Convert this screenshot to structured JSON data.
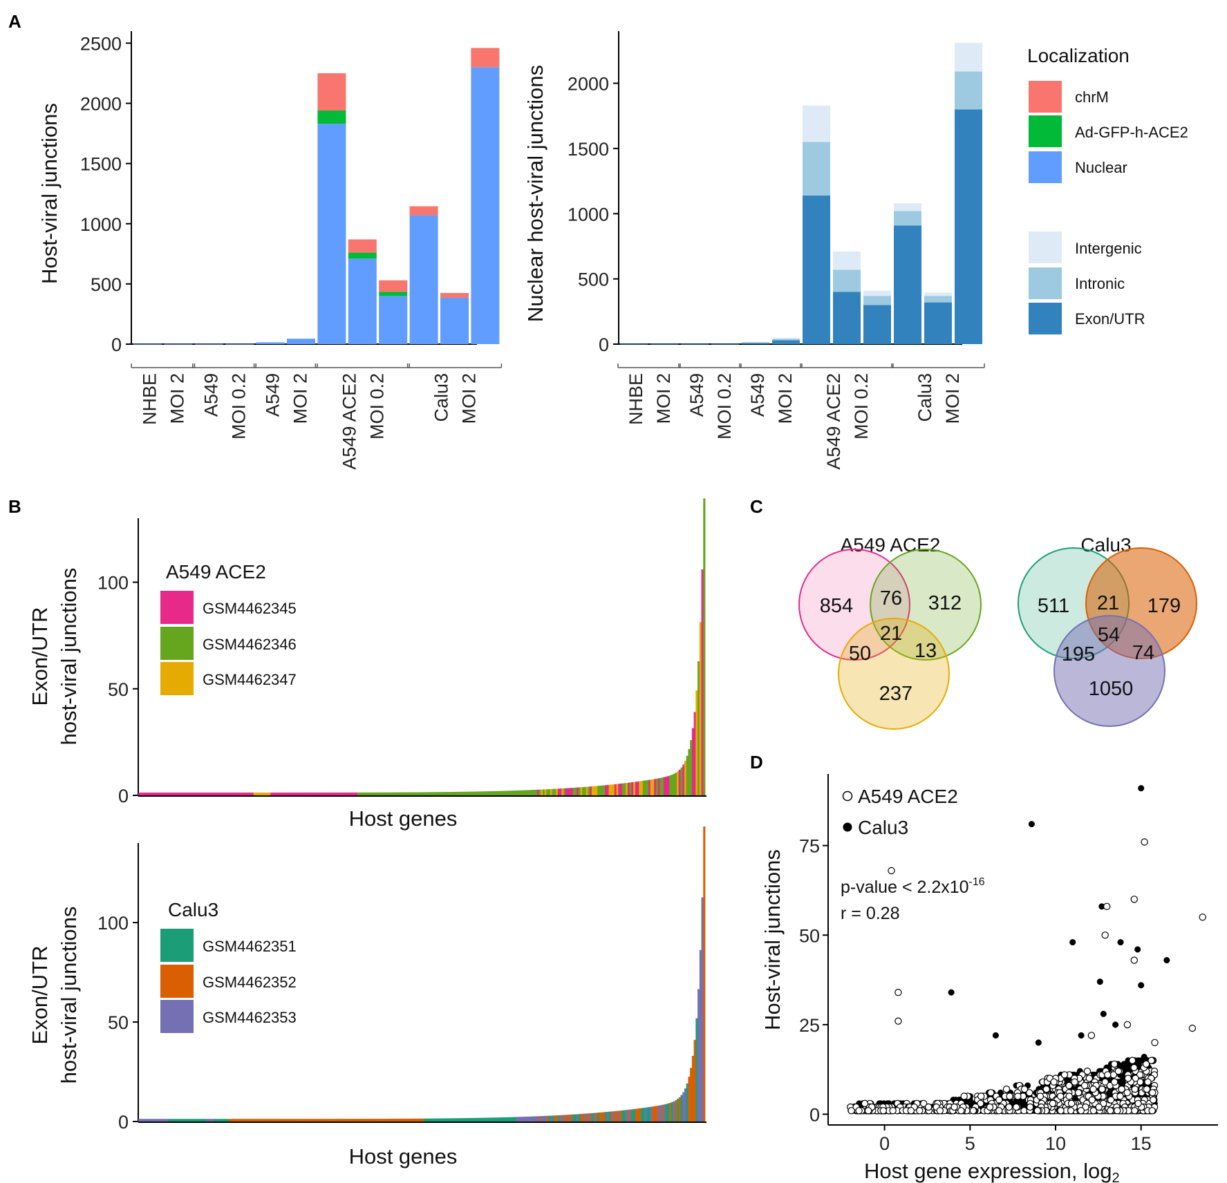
{
  "panels": {
    "a": "A",
    "b": "B",
    "c": "C",
    "d": "D"
  },
  "colors": {
    "chrM": "#F8766D",
    "Ad-GFP-h-ACE2": "#00BA38",
    "Nuclear": "#619CFF",
    "Intergenic": "#DEEBF7",
    "Intronic": "#9ECAE1",
    "Exon/UTR": "#3182BD",
    "GSM4462345": "#E7298A",
    "GSM4462346": "#66A61E",
    "GSM4462347": "#E6AB02",
    "GSM4462351": "#1B9E77",
    "GSM4462352": "#D95F02",
    "GSM4462353": "#7570B3"
  },
  "chart_data": [
    {
      "id": "A-left",
      "type": "bar",
      "stacked": true,
      "ylabel": "Host-viral junctions",
      "ylim": [
        0,
        2600
      ],
      "yticks": [
        0,
        500,
        1000,
        1500,
        2000,
        2500
      ],
      "bar_groups": [
        {
          "lines": [
            "NHBE",
            "MOI 2"
          ],
          "bars": 2
        },
        {
          "lines": [
            "A549",
            "MOI 0.2"
          ],
          "bars": 2
        },
        {
          "lines": [
            "A549",
            "MOI 2"
          ],
          "bars": 2
        },
        {
          "lines": [
            "A549 ACE2",
            "MOI 0.2"
          ],
          "bars": 3
        },
        {
          "lines": [
            "Calu3",
            "MOI 2"
          ],
          "bars": 3
        }
      ],
      "series": [
        {
          "name": "Nuclear",
          "values": [
            2,
            2,
            2,
            2,
            15,
            45,
            1830,
            710,
            400,
            1070,
            385,
            2300
          ]
        },
        {
          "name": "Ad-GFP-h-ACE2",
          "values": [
            0,
            0,
            0,
            0,
            0,
            0,
            110,
            50,
            35,
            0,
            0,
            0
          ]
        },
        {
          "name": "chrM",
          "values": [
            0,
            0,
            0,
            0,
            0,
            0,
            310,
            110,
            95,
            75,
            40,
            160
          ]
        }
      ],
      "legend": {
        "title": "Localization",
        "items": [
          "chrM",
          "Ad-GFP-h-ACE2",
          "Nuclear"
        ]
      }
    },
    {
      "id": "A-right",
      "type": "bar",
      "stacked": true,
      "ylabel": "Nuclear host-viral junctions",
      "ylim": [
        0,
        2400
      ],
      "yticks": [
        0,
        500,
        1000,
        1500,
        2000
      ],
      "bar_groups": [
        {
          "lines": [
            "NHBE",
            "MOI 2"
          ],
          "bars": 2
        },
        {
          "lines": [
            "A549",
            "MOI 0.2"
          ],
          "bars": 2
        },
        {
          "lines": [
            "A549",
            "MOI 2"
          ],
          "bars": 2
        },
        {
          "lines": [
            "A549 ACE2",
            "MOI 0.2"
          ],
          "bars": 3
        },
        {
          "lines": [
            "Calu3",
            "MOI 2"
          ],
          "bars": 3
        }
      ],
      "series": [
        {
          "name": "Exon/UTR",
          "values": [
            2,
            2,
            2,
            2,
            12,
            30,
            1140,
            400,
            300,
            910,
            320,
            1800
          ]
        },
        {
          "name": "Intronic",
          "values": [
            0,
            0,
            0,
            0,
            3,
            10,
            410,
            170,
            70,
            110,
            50,
            290
          ]
        },
        {
          "name": "Intergenic",
          "values": [
            0,
            0,
            0,
            0,
            2,
            8,
            280,
            140,
            40,
            60,
            25,
            220
          ]
        }
      ],
      "legend": {
        "items": [
          "Intergenic",
          "Intronic",
          "Exon/UTR"
        ]
      }
    },
    {
      "id": "B-top",
      "type": "bar",
      "stacked": true,
      "xlabel": "Host genes",
      "ylabel_lines": [
        "Exon/UTR",
        "host-viral junctions"
      ],
      "ylim": [
        0,
        130
      ],
      "yticks": [
        0,
        50,
        100
      ],
      "max_value": 127,
      "legend": {
        "title": "A549 ACE2",
        "items": [
          "GSM4462345",
          "GSM4462346",
          "GSM4462347"
        ]
      }
    },
    {
      "id": "B-bottom",
      "type": "bar",
      "stacked": true,
      "xlabel": "Host genes",
      "ylabel_lines": [
        "Exon/UTR",
        "host-viral junctions"
      ],
      "ylim": [
        0,
        140
      ],
      "yticks": [
        0,
        50,
        100
      ],
      "max_value": 136,
      "legend": {
        "title": "Calu3",
        "items": [
          "GSM4462351",
          "GSM4462352",
          "GSM4462353"
        ]
      }
    },
    {
      "id": "D",
      "type": "scatter",
      "xlabel": "Host gene expression, log",
      "xlabel_sub": "2",
      "ylabel": "Host-viral junctions",
      "xlim": [
        -3.3,
        19.5
      ],
      "ylim": [
        -3,
        95
      ],
      "xticks": [
        0,
        5,
        10,
        15
      ],
      "yticks": [
        0,
        25,
        50,
        75
      ],
      "legend": [
        "A549 ACE2",
        "Calu3"
      ],
      "annotation": {
        "pvalue_prefix": "p-value < 2.2x10",
        "pvalue_exp": "-16",
        "r": "r = 0.28"
      },
      "series": [
        {
          "name": "Calu3",
          "filled": true,
          "points": [
            [
              15.0,
              91
            ],
            [
              8.6,
              81
            ],
            [
              12.7,
              58
            ],
            [
              16.5,
              43
            ],
            [
              11.0,
              48
            ],
            [
              13.8,
              48
            ],
            [
              14.8,
              46
            ],
            [
              15.0,
              36
            ],
            [
              12.6,
              37
            ],
            [
              3.9,
              34
            ],
            [
              11.5,
              22
            ],
            [
              12.8,
              28
            ],
            [
              13.5,
              25
            ],
            [
              6.5,
              22
            ],
            [
              9.0,
              20
            ]
          ]
        },
        {
          "name": "A549 ACE2",
          "filled": false,
          "points": [
            [
              0.4,
              68
            ],
            [
              15.2,
              76
            ],
            [
              14.6,
              60
            ],
            [
              13.0,
              58
            ],
            [
              12.9,
              50
            ],
            [
              14.6,
              43
            ],
            [
              0.8,
              34
            ],
            [
              0.8,
              26
            ],
            [
              18.6,
              55
            ],
            [
              18.0,
              24
            ],
            [
              15.8,
              20
            ],
            [
              14.2,
              25
            ],
            [
              12.1,
              22
            ]
          ]
        }
      ],
      "cloud": {
        "calu3_points": 1400,
        "a549_points": 700,
        "x_range": [
          -2.0,
          15.8
        ],
        "note": "dense low-count cloud"
      }
    }
  ],
  "venns": [
    {
      "title": "A549 ACE2",
      "regions": {
        "a_only": "854",
        "ab": "76",
        "b_only": "312",
        "abc": "21",
        "ac": "50",
        "bc": "13",
        "c_only": "237"
      },
      "fills": [
        "#E7298A",
        "#66A61E",
        "#E6AB02"
      ]
    },
    {
      "title": "Calu3",
      "regions": {
        "a_only": "511",
        "ab": "21",
        "b_only": "179",
        "abc": "54",
        "ac": "195",
        "bc": "74",
        "c_only": "1050"
      },
      "fills": [
        "#1B9E77",
        "#D95F02",
        "#7570B3"
      ]
    }
  ]
}
